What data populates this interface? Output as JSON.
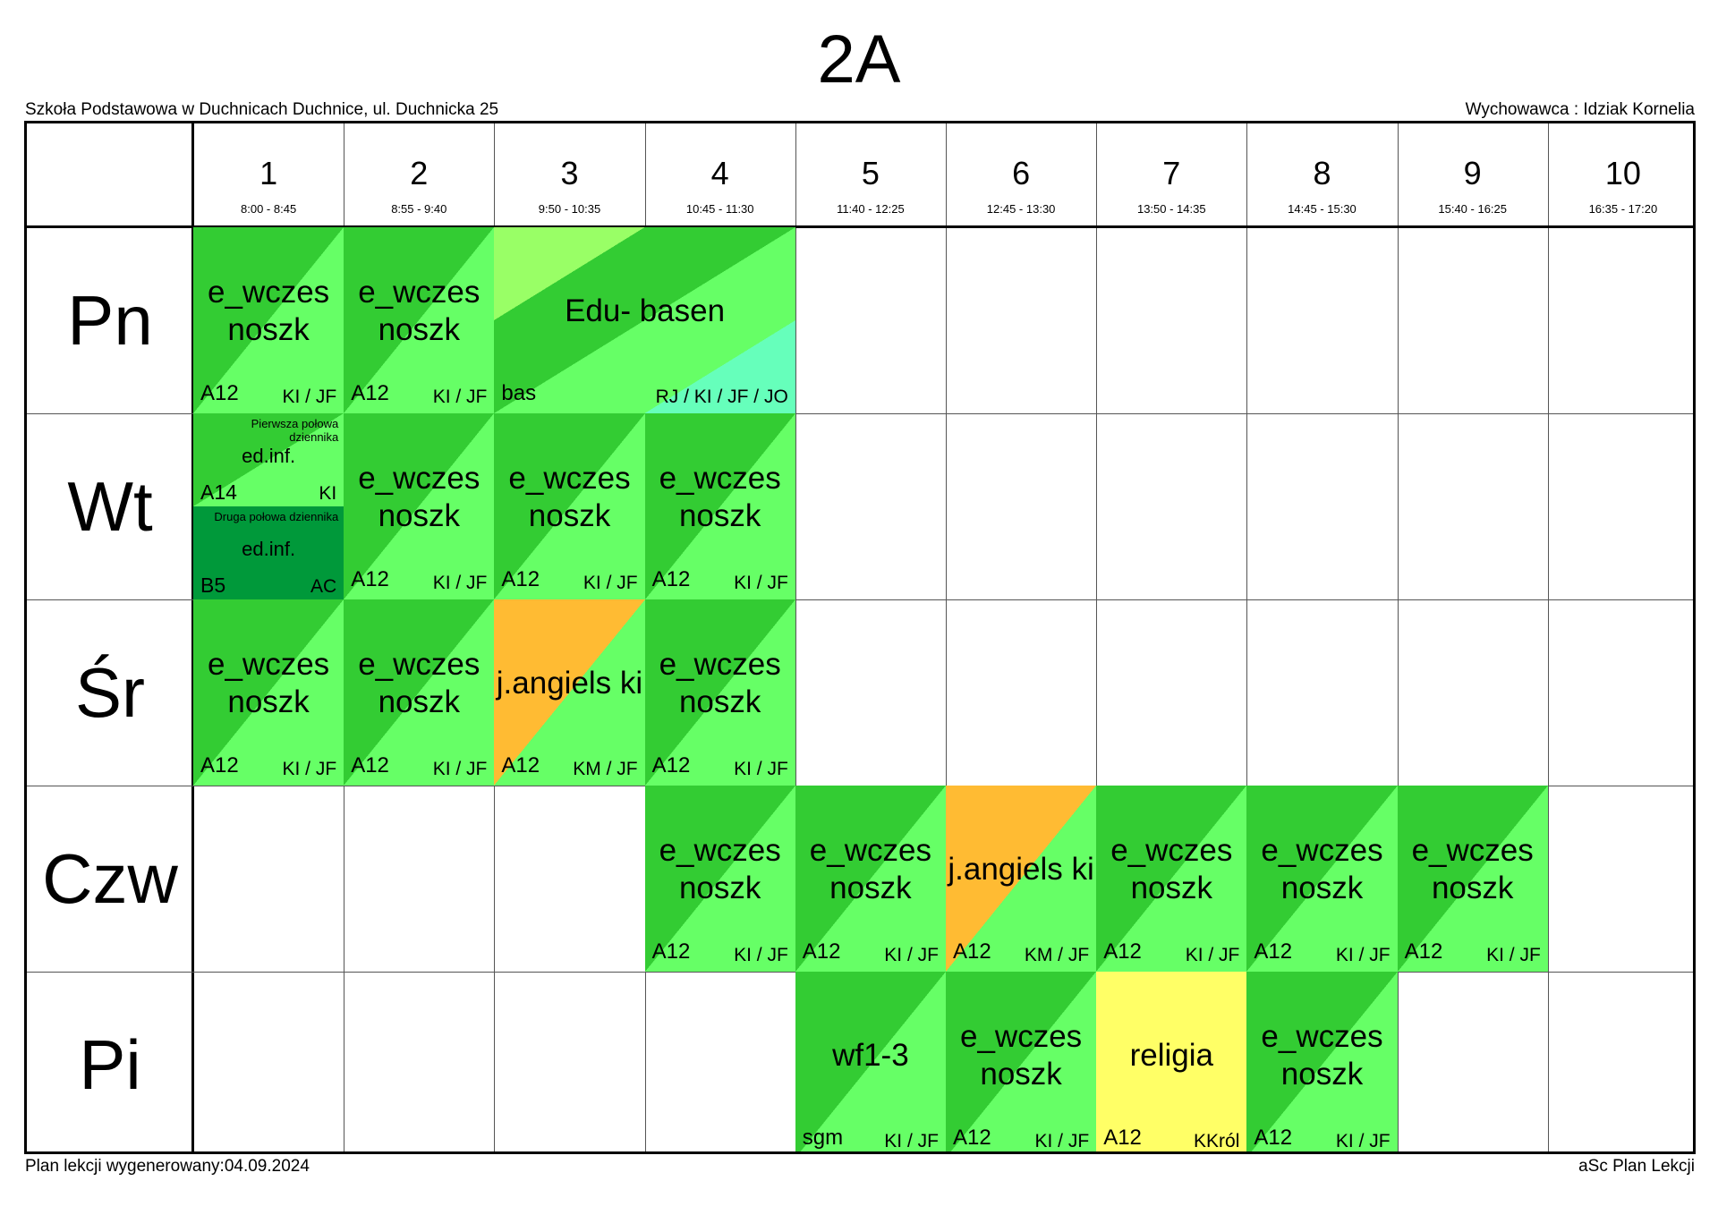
{
  "header": {
    "title": "2A",
    "school": "Szkoła Podstawowa w Duchnicach Duchnice, ul. Duchnicka 25",
    "form_teacher": "Wychowawca : Idziak Kornelia"
  },
  "footer": {
    "generated": "Plan lekcji wygenerowany:04.09.2024",
    "software": "aSc Plan Lekcji"
  },
  "periods": [
    {
      "num": "1",
      "time": "8:00 - 8:45"
    },
    {
      "num": "2",
      "time": "8:55 - 9:40"
    },
    {
      "num": "3",
      "time": "9:50 - 10:35"
    },
    {
      "num": "4",
      "time": "10:45 - 11:30"
    },
    {
      "num": "5",
      "time": "11:40 - 12:25"
    },
    {
      "num": "6",
      "time": "12:45 - 13:30"
    },
    {
      "num": "7",
      "time": "13:50 - 14:35"
    },
    {
      "num": "8",
      "time": "14:45 - 15:30"
    },
    {
      "num": "9",
      "time": "15:40 - 16:25"
    },
    {
      "num": "10",
      "time": "16:35 - 17:20"
    }
  ],
  "days": [
    "Pn",
    "Wt",
    "Śr",
    "Czw",
    "Pi"
  ],
  "colors": {
    "dark_green": "#33cc33",
    "light_green": "#66ff66",
    "lime": "#99ff66",
    "aqua": "#66ffbb",
    "orange": "#ffbb33",
    "yellow": "#ffff66",
    "group_green": "#00993a"
  },
  "lessons": [
    {
      "day": 0,
      "period": 1,
      "span": 1,
      "subject": "e_wczes noszk",
      "room": "A12",
      "teacher": "KI / JF",
      "style": "green"
    },
    {
      "day": 0,
      "period": 2,
      "span": 1,
      "subject": "e_wczes noszk",
      "room": "A12",
      "teacher": "KI / JF",
      "style": "green"
    },
    {
      "day": 0,
      "period": 3,
      "span": 2,
      "subject": "Edu- basen",
      "room": "bas",
      "teacher": "RJ / KI / JF / JO",
      "style": "edu"
    },
    {
      "day": 1,
      "period": 1,
      "span": 1,
      "half": "top",
      "group": "Pierwsza połowa dziennika",
      "subject": "ed.inf.",
      "room": "A14",
      "teacher": "KI",
      "style": "green"
    },
    {
      "day": 1,
      "period": 1,
      "span": 1,
      "half": "bottom",
      "group": "Druga połowa dziennika",
      "subject": "ed.inf.",
      "room": "B5",
      "teacher": "AC",
      "style": "group"
    },
    {
      "day": 1,
      "period": 2,
      "span": 1,
      "subject": "e_wczes noszk",
      "room": "A12",
      "teacher": "KI / JF",
      "style": "green"
    },
    {
      "day": 1,
      "period": 3,
      "span": 1,
      "subject": "e_wczes noszk",
      "room": "A12",
      "teacher": "KI / JF",
      "style": "green"
    },
    {
      "day": 1,
      "period": 4,
      "span": 1,
      "subject": "e_wczes noszk",
      "room": "A12",
      "teacher": "KI / JF",
      "style": "green"
    },
    {
      "day": 2,
      "period": 1,
      "span": 1,
      "subject": "e_wczes noszk",
      "room": "A12",
      "teacher": "KI / JF",
      "style": "green"
    },
    {
      "day": 2,
      "period": 2,
      "span": 1,
      "subject": "e_wczes noszk",
      "room": "A12",
      "teacher": "KI / JF",
      "style": "green"
    },
    {
      "day": 2,
      "period": 3,
      "span": 1,
      "subject": "j.angiels ki",
      "room": "A12",
      "teacher": "KM / JF",
      "style": "orange"
    },
    {
      "day": 2,
      "period": 4,
      "span": 1,
      "subject": "e_wczes noszk",
      "room": "A12",
      "teacher": "KI / JF",
      "style": "green"
    },
    {
      "day": 3,
      "period": 4,
      "span": 1,
      "subject": "e_wczes noszk",
      "room": "A12",
      "teacher": "KI / JF",
      "style": "green"
    },
    {
      "day": 3,
      "period": 5,
      "span": 1,
      "subject": "e_wczes noszk",
      "room": "A12",
      "teacher": "KI / JF",
      "style": "green"
    },
    {
      "day": 3,
      "period": 6,
      "span": 1,
      "subject": "j.angiels ki",
      "room": "A12",
      "teacher": "KM / JF",
      "style": "orange"
    },
    {
      "day": 3,
      "period": 7,
      "span": 1,
      "subject": "e_wczes noszk",
      "room": "A12",
      "teacher": "KI / JF",
      "style": "green"
    },
    {
      "day": 3,
      "period": 8,
      "span": 1,
      "subject": "e_wczes noszk",
      "room": "A12",
      "teacher": "KI / JF",
      "style": "green"
    },
    {
      "day": 3,
      "period": 9,
      "span": 1,
      "subject": "e_wczes noszk",
      "room": "A12",
      "teacher": "KI / JF",
      "style": "green"
    },
    {
      "day": 4,
      "period": 5,
      "span": 1,
      "subject": "wf1-3",
      "room": "sgm",
      "teacher": "KI / JF",
      "style": "green"
    },
    {
      "day": 4,
      "period": 6,
      "span": 1,
      "subject": "e_wczes noszk",
      "room": "A12",
      "teacher": "KI / JF",
      "style": "green"
    },
    {
      "day": 4,
      "period": 7,
      "span": 1,
      "subject": "religia",
      "room": "A12",
      "teacher": "KKról",
      "style": "yellow"
    },
    {
      "day": 4,
      "period": 8,
      "span": 1,
      "subject": "e_wczes noszk",
      "room": "A12",
      "teacher": "KI / JF",
      "style": "green"
    }
  ]
}
